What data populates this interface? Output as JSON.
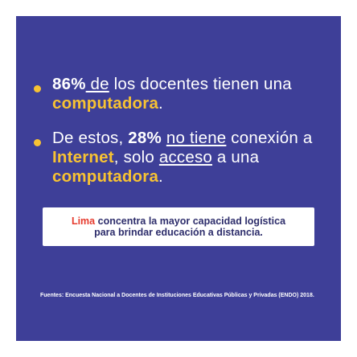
{
  "bullets": {
    "b1": {
      "pct": "86%",
      "ul_text": " de",
      "text": " los docentes tienen una ",
      "highlight": "computadora",
      "end": "."
    },
    "b2": {
      "lead": "De estos, ",
      "pct": "28%",
      "gap": " ",
      "ul_text": "no tiene",
      "mid1": " conexión a ",
      "highlight1": "Internet",
      "mid2": ", solo ",
      "ul_text2": "acceso",
      "mid3": " a una ",
      "highlight2": "computadora",
      "end": "."
    }
  },
  "callout": {
    "city": "Lima",
    "line1": " concentra la mayor capacidad logística",
    "line2": "para brindar educación a distancia."
  },
  "source": "Fuentes: Encuesta Nacional a Docentes de Instituciones Educativas Públicas y Privadas (ENDO) 2018.",
  "colors": {
    "background": "#3e3f98",
    "accent": "#f7c233",
    "red": "#e63b2e"
  }
}
